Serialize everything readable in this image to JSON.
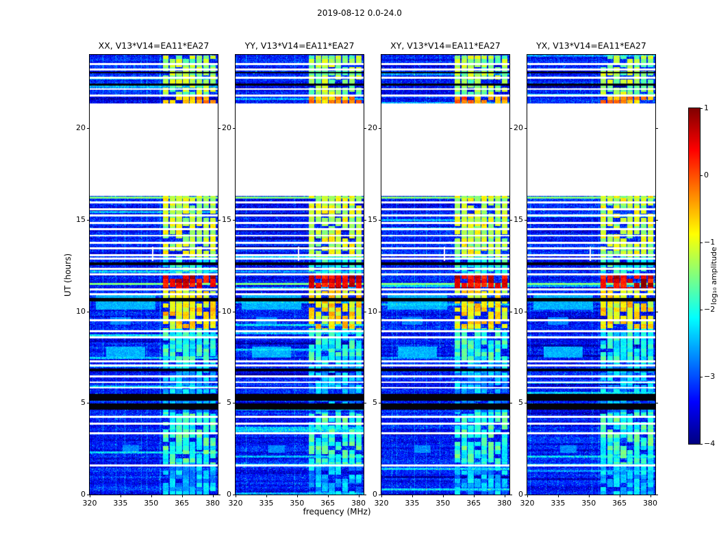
{
  "chart_data": {
    "type": "heatmap",
    "title": "2019-08-12 0.0-24.0",
    "xlabel": "frequency (MHz)",
    "ylabel": "UT (hours)",
    "xticks": [
      320,
      335,
      350,
      365,
      380
    ],
    "yticks": [
      0,
      5,
      10,
      15,
      20
    ],
    "x_range_mhz": [
      320,
      382.5
    ],
    "y_range_hours": [
      0,
      24
    ],
    "value_range_log10": [
      -4,
      1
    ],
    "grid": false,
    "colorbar": {
      "label": "log₁₀ amplitude",
      "ticks": [
        1,
        0,
        -1,
        -2,
        -3,
        -4
      ],
      "range": [
        -4,
        1
      ]
    },
    "panels": [
      {
        "pol": "XX",
        "label": "XX, V13*V14=EA11*EA27"
      },
      {
        "pol": "YY",
        "label": "YY, V13*V14=EA11*EA27"
      },
      {
        "pol": "XY",
        "label": "XY, V13*V14=EA11*EA27"
      },
      {
        "pol": "YX",
        "label": "YX, V13*V14=EA11*EA27"
      }
    ],
    "features": {
      "background_level": -3.3,
      "data_gap_hours": [
        16.3,
        21.35
      ],
      "rfi_band_mhz": [
        355.5,
        381.5
      ],
      "rfi_subband_width_mhz": 3.3,
      "rfi_intervals": [
        {
          "t0": 21.38,
          "t1": 21.75,
          "level": -0.35
        },
        {
          "t0": 21.75,
          "t1": 24.0,
          "level": -1.35
        },
        {
          "t0": 13.0,
          "t1": 16.3,
          "level": -1.15
        },
        {
          "t0": 12.05,
          "t1": 13.0,
          "level": -2.0
        },
        {
          "t0": 11.25,
          "t1": 12.05,
          "level": 0.55
        },
        {
          "t0": 9.05,
          "t1": 11.25,
          "level": -0.85
        },
        {
          "t0": 7.2,
          "t1": 9.05,
          "level": -2.0
        },
        {
          "t0": 5.6,
          "t1": 7.2,
          "level": -2.5
        },
        {
          "t0": 4.5,
          "t1": 5.6,
          "level": -2.6
        },
        {
          "t0": 1.7,
          "t1": 4.5,
          "level": -1.9
        },
        {
          "t0": 0.0,
          "t1": 1.7,
          "level": -2.5
        }
      ],
      "white_rows_hours": [
        1.6,
        3.35,
        3.9,
        4.25,
        5.85,
        6.15,
        6.45,
        7.05,
        7.3,
        8.6,
        8.95,
        9.55,
        10.95,
        11.22,
        12.05,
        12.35,
        12.9,
        13.1,
        13.45,
        13.75,
        14.15,
        14.5,
        14.85,
        15.25,
        15.6,
        15.95,
        21.8,
        22.15,
        22.75,
        23.2,
        23.5
      ],
      "black_rows_hours": [
        [
          4.65,
          5.0
        ],
        [
          5.15,
          5.5
        ],
        [
          6.75,
          6.9
        ],
        [
          10.55,
          10.75
        ],
        [
          12.55,
          12.7
        ],
        [
          22.35,
          22.44
        ],
        [
          23.0,
          23.07
        ]
      ],
      "bright_full_rows_hours": [
        [
          11.45,
          11.56
        ],
        [
          16.18,
          16.27
        ]
      ],
      "vertical_marks": [
        {
          "f": 350.5,
          "t0": 12.75,
          "t1": 13.55
        }
      ],
      "diffuse_blobs": [
        {
          "t0": 7.5,
          "t1": 8.1,
          "f0": 328,
          "f1": 347,
          "level": -2.5
        },
        {
          "t0": 10.1,
          "t1": 10.9,
          "f0": 323,
          "f1": 352,
          "level": -2.5
        },
        {
          "t0": 2.3,
          "t1": 2.7,
          "f0": 336,
          "f1": 344,
          "level": -2.7
        },
        {
          "t0": 9.3,
          "t1": 9.7,
          "f0": 330,
          "f1": 340,
          "level": -2.7
        }
      ]
    }
  }
}
